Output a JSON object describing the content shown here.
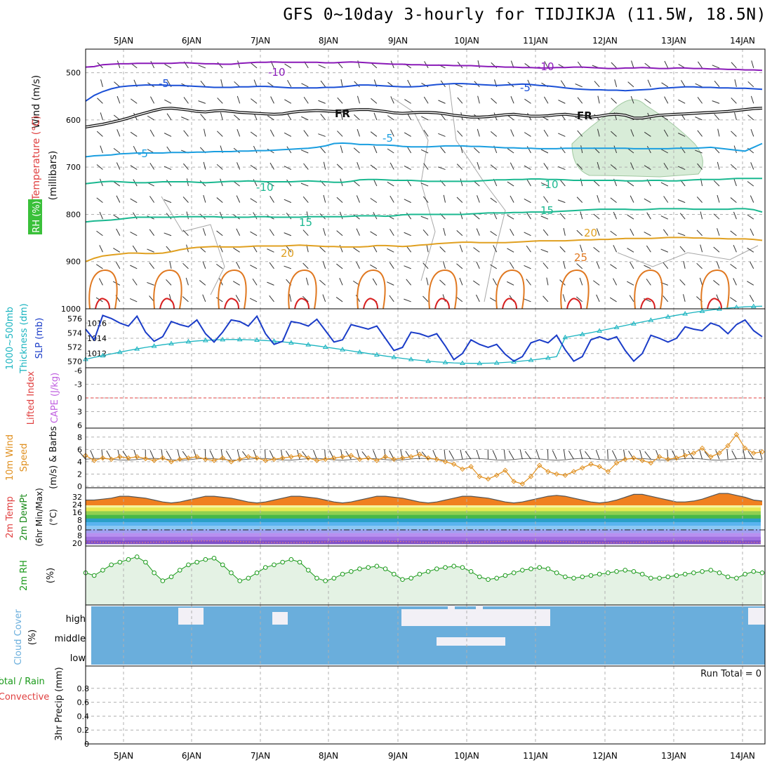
{
  "title": "GFS 0~10day 3-hourly for TIDJIKJA (11.5W, 18.5N)",
  "colors": {
    "purple": "#8a1ab8",
    "blue": "#1a4fd6",
    "cyan": "#1a9ee0",
    "teal": "#1ab890",
    "orange": "#e0a020",
    "dkorange": "#e07820",
    "red": "#d82020",
    "slp": "#1a3cc8",
    "thick": "#1ab4c0",
    "windspd": "#e09020",
    "rh": "#1a9a1a",
    "cloud": "#6aaedc",
    "cape": "#c060e0",
    "li": "#e04040",
    "grid": "#b0b0b0"
  },
  "chart_data": {
    "type": "line",
    "x_labels": [
      "5JAN",
      "6JAN",
      "7JAN",
      "8JAN",
      "9JAN",
      "10JAN",
      "11JAN",
      "12JAN",
      "13JAN",
      "14JAN"
    ],
    "steps": 80,
    "panels": [
      {
        "name": "upper-air",
        "ylabels": [
          "Wind (m/s)",
          "Temperature (°C)",
          "RH (%)",
          "(millibars)"
        ],
        "yticks": [
          "500",
          "600",
          "700",
          "800",
          "900",
          "1000"
        ],
        "ylim": [
          450,
          1000
        ],
        "contours": [
          {
            "label": "-10",
            "color_key": "purple",
            "values": [
              488,
              487,
              483,
              482,
              481,
              481,
              480,
              480,
              480,
              480,
              480,
              479,
              479,
              480,
              481,
              481,
              482,
              482,
              480,
              479,
              478,
              478,
              477,
              478,
              478,
              478,
              478,
              478,
              479,
              479,
              478,
              477,
              478,
              479,
              480,
              481,
              482,
              482,
              483,
              483,
              484,
              484,
              484,
              485,
              485,
              485,
              486,
              487,
              487,
              488,
              488,
              489,
              489,
              490,
              490,
              489,
              489,
              488,
              488,
              489,
              490,
              491,
              491,
              490,
              490,
              489,
              490,
              491,
              491,
              490,
              490,
              491,
              491,
              492,
              492,
              493,
              493,
              494,
              494,
              495
            ]
          },
          {
            "label": "-5",
            "color_key": "blue",
            "values": [
              560,
              548,
              540,
              534,
              530,
              528,
              527,
              526,
              526,
              526,
              527,
              527,
              528,
              529,
              530,
              531,
              531,
              531,
              530,
              530,
              529,
              529,
              530,
              531,
              532,
              532,
              532,
              532,
              531,
              531,
              530,
              528,
              526,
              526,
              527,
              528,
              529,
              530,
              530,
              529,
              527,
              525,
              524,
              523,
              523,
              524,
              525,
              526,
              527,
              526,
              525,
              524,
              525,
              527,
              528,
              530,
              532,
              534,
              535,
              536,
              536,
              537,
              537,
              538,
              537,
              536,
              535,
              533,
              532,
              531,
              530,
              530,
              531,
              531,
              532,
              532,
              533,
              533,
              534,
              535
            ]
          },
          {
            "label": "FR",
            "color_key": "black",
            "values": [
              615,
              612,
              609,
              605,
              601,
              596,
              590,
              585,
              580,
              576,
              575,
              577,
              579,
              582,
              583,
              581,
              580,
              582,
              584,
              585,
              586,
              587,
              588,
              587,
              584,
              582,
              581,
              580,
              581,
              582,
              581,
              579,
              578,
              578,
              580,
              582,
              585,
              586,
              585,
              584,
              584,
              585,
              587,
              590,
              592,
              594,
              594,
              593,
              591,
              589,
              588,
              590,
              592,
              592,
              591,
              589,
              588,
              590,
              592,
              594,
              592,
              589,
              588,
              590,
              596,
              596,
              593,
              590,
              589,
              588,
              587,
              586,
              585,
              584,
              583,
              582,
              580,
              578,
              576,
              575
            ]
          },
          {
            "label": "-5",
            "color_key": "cyan",
            "values": [
              678,
              676,
              675,
              674,
              672,
              671,
              670,
              670,
              670,
              670,
              669,
              669,
              669,
              668,
              668,
              667,
              667,
              667,
              666,
              666,
              665,
              665,
              664,
              663,
              662,
              661,
              660,
              658,
              655,
              650,
              649,
              650,
              652,
              652,
              653,
              653,
              654,
              656,
              657,
              657,
              657,
              656,
              655,
              655,
              655,
              656,
              656,
              657,
              658,
              659,
              659,
              660,
              660,
              661,
              661,
              661,
              660,
              660,
              660,
              660,
              660,
              660,
              660,
              660,
              661,
              661,
              661,
              661,
              661,
              660,
              660,
              660,
              659,
              658,
              660,
              662,
              664,
              666,
              658,
              650
            ]
          },
          {
            "label": "-10",
            "color_key": "teal",
            "values": [
              735,
              733,
              731,
              730,
              731,
              732,
              733,
              733,
              732,
              731,
              731,
              731,
              731,
              732,
              733,
              732,
              731,
              730,
              730,
              729,
              730,
              731,
              731,
              731,
              731,
              730,
              729,
              730,
              731,
              732,
              732,
              730,
              727,
              726,
              726,
              727,
              728,
              728,
              728,
              729,
              730,
              730,
              730,
              730,
              730,
              730,
              729,
              728,
              727,
              727,
              726,
              726,
              725,
              725,
              726,
              726,
              727,
              728,
              728,
              728,
              728,
              728,
              728,
              729,
              729,
              729,
              728,
              728,
              729,
              729,
              728,
              727,
              726,
              726,
              726,
              725,
              724,
              724,
              724,
              724
            ]
          },
          {
            "label": "15",
            "color_key": "teal",
            "values": [
              816,
              814,
              813,
              812,
              810,
              808,
              806,
              806,
              806,
              806,
              806,
              805,
              805,
              805,
              805,
              805,
              806,
              806,
              806,
              806,
              805,
              805,
              806,
              806,
              806,
              806,
              805,
              805,
              805,
              805,
              805,
              804,
              803,
              803,
              803,
              804,
              803,
              801,
              800,
              800,
              800,
              800,
              800,
              800,
              800,
              799,
              798,
              797,
              797,
              797,
              796,
              796,
              795,
              795,
              795,
              794,
              793,
              792,
              791,
              790,
              789,
              789,
              789,
              789,
              790,
              790,
              789,
              788,
              788,
              788,
              788,
              789,
              789,
              789,
              789,
              789,
              788,
              788,
              790,
              795
            ]
          },
          {
            "label": "20",
            "color_key": "orange",
            "values": [
              900,
              893,
              888,
              886,
              884,
              882,
              882,
              883,
              883,
              882,
              879,
              875,
              872,
              870,
              869,
              868,
              869,
              869,
              869,
              868,
              867,
              867,
              867,
              867,
              866,
              865,
              866,
              867,
              868,
              868,
              869,
              869,
              869,
              868,
              866,
              866,
              867,
              868,
              867,
              865,
              864,
              862,
              861,
              860,
              859,
              859,
              860,
              860,
              860,
              860,
              859,
              858,
              857,
              856,
              856,
              856,
              856,
              855,
              854,
              854,
              853,
              853,
              852,
              851,
              851,
              851,
              851,
              850,
              849,
              849,
              849,
              850,
              850,
              851,
              851,
              852,
              852,
              852,
              853,
              855
            ]
          }
        ]
      },
      {
        "name": "slp-thickness",
        "ylabels": [
          "1000~500mb",
          "Thickness (dm)",
          "SLP (mb)"
        ],
        "left_ticks": [
          "570",
          "572",
          "574",
          "576"
        ],
        "right_ticks": [
          "1012",
          "1014",
          "1016"
        ],
        "slp_ylim": [
          1010.5,
          1017.5
        ],
        "thick_ylim": [
          569.5,
          577
        ],
        "slp": [
          1015.2,
          1013.8,
          1017.0,
          1016.6,
          1016.0,
          1015.6,
          1016.9,
          1014.8,
          1013.6,
          1014.2,
          1016.2,
          1015.8,
          1015.5,
          1016.4,
          1014.6,
          1013.5,
          1014.8,
          1016.4,
          1016.2,
          1015.6,
          1016.9,
          1014.6,
          1013.2,
          1013.6,
          1016.2,
          1016.0,
          1015.6,
          1016.5,
          1015.0,
          1013.5,
          1013.8,
          1015.8,
          1015.5,
          1015.2,
          1015.6,
          1014.0,
          1012.4,
          1012.8,
          1014.8,
          1014.6,
          1014.2,
          1014.6,
          1013.0,
          1011.2,
          1012.0,
          1013.8,
          1013.2,
          1012.8,
          1013.2,
          1011.9,
          1011.0,
          1011.6,
          1013.4,
          1013.8,
          1013.4,
          1014.4,
          1012.5,
          1011.0,
          1011.6,
          1013.8,
          1014.2,
          1013.8,
          1014.2,
          1012.4,
          1011.0,
          1012.0,
          1014.4,
          1014.0,
          1013.5,
          1014.0,
          1015.5,
          1015.2,
          1015.0,
          1016.0,
          1015.6,
          1014.6,
          1015.8,
          1016.4,
          1015.0,
          1014.2
        ]
      },
      {
        "name": "cape-li",
        "ylabels": [
          "Lifted Index",
          "CAPE (J/kg)"
        ],
        "ticks": [
          "-6",
          "-3",
          "0",
          "3",
          "6"
        ],
        "li_value": 0,
        "cape_value": 0
      },
      {
        "name": "10m-wind",
        "ylabels": [
          "10m Wind",
          "Speed",
          "(m/s) & Barbs"
        ],
        "ticks": [
          "0",
          "2",
          "4",
          "6",
          "8"
        ],
        "ylim": [
          0,
          9
        ],
        "speed": [
          5.0,
          4.2,
          4.6,
          4.4,
          4.8,
          4.6,
          4.8,
          4.5,
          4.2,
          4.6,
          4.0,
          4.4,
          4.6,
          4.8,
          4.4,
          4.2,
          4.6,
          4.0,
          4.4,
          4.8,
          4.6,
          4.2,
          4.4,
          4.6,
          4.8,
          5.0,
          4.6,
          4.2,
          4.4,
          4.6,
          4.8,
          5.0,
          4.4,
          4.6,
          4.2,
          4.8,
          4.4,
          4.6,
          4.8,
          5.2,
          4.6,
          4.4,
          4.0,
          3.6,
          2.8,
          3.2,
          1.6,
          1.2,
          1.8,
          2.6,
          0.8,
          0.4,
          1.6,
          3.4,
          2.4,
          2.0,
          1.8,
          2.4,
          3.0,
          3.6,
          3.2,
          2.4,
          3.8,
          4.4,
          4.6,
          4.2,
          3.8,
          4.8,
          4.4,
          4.6,
          5.0,
          5.4,
          6.2,
          4.8,
          5.4,
          6.6,
          8.4,
          6.2,
          5.4,
          5.6
        ]
      },
      {
        "name": "2m-temp",
        "ylabels": [
          "2m Temp",
          "2m DewPt",
          "(6hr Min/Max)",
          "(°C)"
        ],
        "ticks": [
          "32",
          "24",
          "16",
          "8",
          "0",
          "8",
          "20"
        ],
        "temp": [
          24,
          24,
          25,
          26,
          28,
          28,
          27,
          26,
          24,
          22,
          21,
          22,
          24,
          26,
          28,
          28,
          27,
          26,
          24,
          22,
          21,
          22,
          24,
          26,
          28,
          28,
          27,
          26,
          24,
          22,
          21,
          22,
          24,
          26,
          28,
          28,
          27,
          26,
          24,
          22,
          21,
          22,
          24,
          26,
          28,
          28,
          27,
          26,
          24,
          22,
          21,
          22,
          24,
          26,
          28,
          29,
          28,
          26,
          24,
          22,
          21,
          22,
          24,
          27,
          30,
          30,
          28,
          26,
          24,
          22,
          22,
          23,
          25,
          28,
          31,
          31,
          29,
          27,
          24,
          23
        ]
      },
      {
        "name": "2m-rh",
        "ylabels": [
          "2m RH",
          "(%)"
        ],
        "rh": [
          22,
          20,
          24,
          28,
          30,
          32,
          34,
          30,
          22,
          16,
          19,
          24,
          28,
          30,
          32,
          33,
          28,
          22,
          16,
          18,
          22,
          26,
          28,
          30,
          32,
          30,
          24,
          18,
          16,
          18,
          21,
          23,
          25,
          26,
          27,
          25,
          21,
          17,
          18,
          21,
          23,
          25,
          26,
          27,
          26,
          23,
          19,
          17,
          18,
          20,
          22,
          24,
          25,
          26,
          25,
          22,
          19,
          18,
          19,
          20,
          21,
          22,
          23,
          24,
          23,
          21,
          18,
          18,
          19,
          20,
          21,
          22,
          23,
          24,
          22,
          19,
          18,
          21,
          23,
          22
        ]
      },
      {
        "name": "cloud",
        "ylabels": [
          "Cloud Cover",
          "(%)"
        ],
        "levels": [
          "high",
          "middle",
          "low"
        ]
      },
      {
        "name": "precip",
        "ylabels": [
          "Total / Rain",
          "Convective",
          "3hr Precip (mm)"
        ],
        "ticks": [
          "0",
          "0.2",
          "0.4",
          "0.6",
          "0.8"
        ],
        "run_total": "Run Total = 0"
      }
    ]
  }
}
